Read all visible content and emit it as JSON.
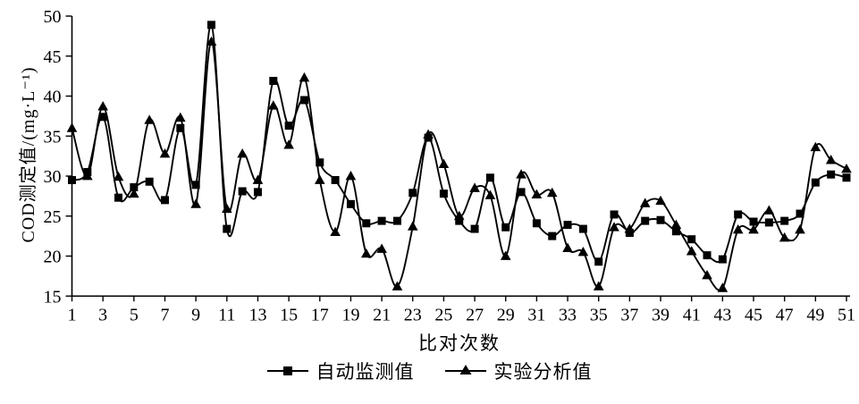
{
  "figure": {
    "background": "#ffffff",
    "foreground": "#000000"
  },
  "chart_data": {
    "type": "line",
    "title": "",
    "xlabel": "比对次数",
    "ylabel": "COD测定值/(mg·L⁻¹)",
    "grid": false,
    "legend_position": "bottom-center",
    "line_color": "#000000",
    "xlim": [
      1,
      51
    ],
    "ylim": [
      15,
      50
    ],
    "x_ticks": [
      1,
      3,
      5,
      7,
      9,
      11,
      13,
      15,
      17,
      19,
      21,
      23,
      25,
      27,
      29,
      31,
      33,
      35,
      37,
      39,
      41,
      43,
      45,
      47,
      49,
      51
    ],
    "y_ticks": [
      15,
      20,
      25,
      30,
      35,
      40,
      45,
      50
    ],
    "x": [
      1,
      2,
      3,
      4,
      5,
      6,
      7,
      8,
      9,
      10,
      11,
      12,
      13,
      14,
      15,
      16,
      17,
      18,
      19,
      20,
      21,
      22,
      23,
      24,
      25,
      26,
      27,
      28,
      29,
      30,
      31,
      32,
      33,
      34,
      35,
      36,
      37,
      38,
      39,
      40,
      41,
      42,
      43,
      44,
      45,
      46,
      47,
      48,
      49,
      50,
      51
    ],
    "series": [
      {
        "name": "自动监测值",
        "marker": "square",
        "values": [
          29.5,
          30.5,
          37.4,
          27.3,
          28.6,
          29.3,
          27.0,
          36.0,
          28.9,
          48.9,
          23.4,
          28.1,
          28.0,
          41.9,
          36.3,
          39.5,
          31.7,
          29.5,
          26.5,
          24.1,
          24.4,
          24.4,
          27.9,
          34.8,
          27.8,
          24.4,
          23.4,
          29.8,
          23.6,
          28.0,
          24.1,
          22.5,
          23.9,
          23.4,
          19.3,
          25.2,
          22.9,
          24.4,
          24.5,
          23.1,
          22.1,
          20.1,
          19.6,
          25.2,
          24.3,
          24.2,
          24.4,
          25.3,
          29.2,
          30.2,
          29.8
        ]
      },
      {
        "name": "实验分析值",
        "marker": "triangle",
        "values": [
          36.0,
          30.0,
          38.7,
          29.9,
          27.8,
          37.0,
          32.8,
          37.3,
          26.5,
          46.8,
          25.9,
          32.8,
          29.5,
          38.8,
          33.9,
          42.3,
          29.5,
          23.0,
          30.0,
          20.3,
          20.9,
          16.2,
          23.7,
          35.2,
          31.5,
          25.0,
          28.5,
          27.6,
          20.0,
          30.2,
          27.7,
          27.9,
          21.0,
          20.5,
          16.2,
          23.6,
          23.4,
          26.6,
          26.9,
          23.9,
          20.6,
          17.6,
          16.0,
          23.3,
          23.3,
          25.7,
          22.3,
          23.3,
          33.6,
          32.0,
          30.9
        ]
      }
    ]
  }
}
